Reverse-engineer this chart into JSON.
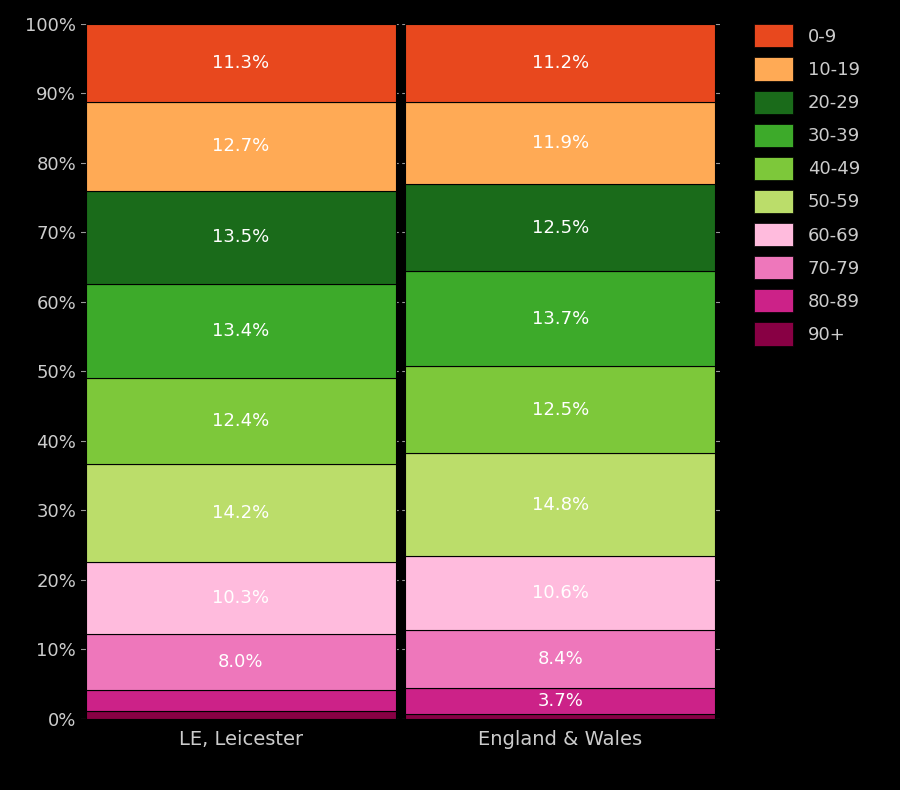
{
  "categories": [
    "LE, Leicester",
    "England & Wales"
  ],
  "colors": {
    "0-9": "#E8481E",
    "10-19": "#FFAA55",
    "20-29": "#1A6B1A",
    "30-39": "#3DAA2A",
    "40-49": "#7DC83A",
    "50-59": "#BBDD6A",
    "60-69": "#FFBBDD",
    "70-79": "#EE77BB",
    "80-89": "#CC2288",
    "90+": "#880044"
  },
  "values": {
    "LE, Leicester": {
      "0-9": 11.3,
      "10-19": 12.7,
      "20-29": 13.5,
      "30-39": 13.4,
      "40-49": 12.4,
      "50-59": 14.2,
      "60-69": 10.3,
      "70-79": 8.0,
      "80-89": 3.0,
      "90+": 1.2
    },
    "England & Wales": {
      "0-9": 11.2,
      "10-19": 11.9,
      "20-29": 12.5,
      "30-39": 13.7,
      "40-49": 12.5,
      "50-59": 14.8,
      "60-69": 10.6,
      "70-79": 8.4,
      "80-89": 3.7,
      "90+": 0.7
    }
  },
  "labels": {
    "LE, Leicester": {
      "0-9": "11.3%",
      "10-19": "12.7%",
      "20-29": "13.5%",
      "30-39": "13.4%",
      "40-49": "12.4%",
      "50-59": "14.2%",
      "60-69": "10.3%",
      "70-79": "8.0%",
      "80-89": null,
      "90+": null
    },
    "England & Wales": {
      "0-9": "11.2%",
      "10-19": "11.9%",
      "20-29": "12.5%",
      "30-39": "13.7%",
      "40-49": "12.5%",
      "50-59": "14.8%",
      "60-69": "10.6%",
      "70-79": "8.4%",
      "80-89": "3.7%",
      "90+": null
    }
  },
  "stack_order": [
    "90+",
    "80-89",
    "70-79",
    "60-69",
    "50-59",
    "40-49",
    "30-39",
    "20-29",
    "10-19",
    "0-9"
  ],
  "legend_order": [
    "0-9",
    "10-19",
    "20-29",
    "30-39",
    "40-49",
    "50-59",
    "60-69",
    "70-79",
    "80-89",
    "90+"
  ],
  "background_color": "#000000",
  "text_color": "#ffffff",
  "tick_label_color": "#cccccc",
  "label_font_size": 13,
  "legend_font_size": 13,
  "bar_width": 0.97,
  "figsize": [
    9.0,
    7.9
  ],
  "dpi": 100
}
